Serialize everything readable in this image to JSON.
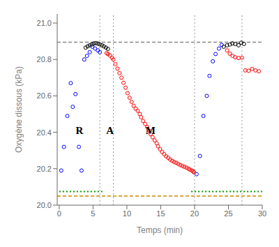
{
  "chart_data": {
    "type": "scatter",
    "xlabel": "Temps (min)",
    "ylabel": "Oxygène dissous (kPa)",
    "xlim": [
      -0.3,
      30
    ],
    "ylim": [
      20.0,
      21.05
    ],
    "xticks": [
      0,
      5,
      10,
      15,
      20,
      25,
      30
    ],
    "yticks": [
      {
        "value": 20.0,
        "label": "20.0"
      },
      20.2,
      20.4,
      20.6,
      20.8,
      {
        "value": 21.0,
        "label": "21.0"
      }
    ],
    "grid": false,
    "series": [
      {
        "color": "blue",
        "marker": "open_circle",
        "x": [
          0.3,
          0.7,
          1.2,
          1.7,
          2.0,
          2.4,
          2.9,
          3.3,
          3.7,
          4.1,
          4.5,
          4.9,
          5.3,
          5.7,
          6.0,
          20.3,
          20.8,
          21.3,
          21.8,
          22.2,
          22.7,
          23.1,
          23.6,
          24.0
        ],
        "values": [
          20.19,
          20.32,
          20.49,
          20.67,
          20.54,
          20.61,
          20.32,
          20.19,
          20.8,
          20.82,
          20.84,
          20.87,
          20.86,
          20.85,
          20.84,
          20.17,
          20.27,
          20.49,
          20.6,
          20.71,
          20.79,
          20.83,
          20.86,
          20.88
        ]
      },
      {
        "color": "black",
        "marker": "open_circle",
        "x": [
          3.9,
          4.2,
          4.5,
          4.8,
          5.1,
          5.4,
          5.7,
          6.0,
          6.3,
          6.6,
          6.9,
          7.2,
          24.3,
          24.8,
          25.2,
          25.6,
          26.0,
          26.5,
          26.9,
          27.3
        ],
        "values": [
          20.865,
          20.872,
          20.878,
          20.882,
          20.888,
          20.89,
          20.887,
          20.883,
          20.878,
          20.872,
          20.865,
          20.858,
          20.87,
          20.878,
          20.882,
          20.888,
          20.885,
          20.878,
          20.892,
          20.885
        ]
      },
      {
        "color": "red",
        "marker": "open_circle",
        "x": [
          7.0,
          7.2,
          7.5,
          7.8,
          8.0,
          8.3,
          8.6,
          8.9,
          9.2,
          9.5,
          9.8,
          10.1,
          10.4,
          10.7,
          11.0,
          11.3,
          11.6,
          11.9,
          12.1,
          12.4,
          12.7,
          13.0,
          13.3,
          13.5,
          13.8,
          14.1,
          14.4,
          14.6,
          14.9,
          15.2,
          15.5,
          15.8,
          16.1,
          16.4,
          16.7,
          17.0,
          17.3,
          17.6,
          17.9,
          18.2,
          18.5,
          18.8,
          19.1,
          19.3,
          19.6,
          19.8,
          19.9,
          24.8,
          25.2,
          25.6,
          26.0,
          26.5,
          27.0,
          27.5,
          28.0,
          28.5,
          29.0,
          29.5
        ],
        "values": [
          20.835,
          20.83,
          20.822,
          20.81,
          20.8,
          20.775,
          20.75,
          20.725,
          20.7,
          20.672,
          20.645,
          20.615,
          20.59,
          20.567,
          20.545,
          20.53,
          20.518,
          20.5,
          20.483,
          20.462,
          20.446,
          20.429,
          20.408,
          20.39,
          20.373,
          20.356,
          20.34,
          20.323,
          20.307,
          20.292,
          20.28,
          20.268,
          20.26,
          20.25,
          20.243,
          20.237,
          20.232,
          20.226,
          20.22,
          20.215,
          20.21,
          20.206,
          20.2,
          20.195,
          20.19,
          20.185,
          20.18,
          20.85,
          20.832,
          20.82,
          20.812,
          20.808,
          20.81,
          20.74,
          20.738,
          20.748,
          20.74,
          20.735
        ]
      }
    ],
    "hlines": [
      {
        "y": 20.895,
        "color": "#888888",
        "line_style": "dashed"
      },
      {
        "y": 20.075,
        "color": "#009900",
        "line_style": "dotted",
        "segments": [
          [
            0,
            6.5
          ],
          [
            19.5,
            30
          ]
        ]
      },
      {
        "y": 20.05,
        "color": "#CC8800",
        "line_style": "dashed"
      }
    ],
    "vlines": [
      {
        "x": 6.0,
        "color": "#999999",
        "line_style": "dotted"
      },
      {
        "x": 8.0,
        "color": "#999999",
        "line_style": "dotted"
      },
      {
        "x": 20.0,
        "color": "#999999",
        "line_style": "dotted"
      },
      {
        "x": 27.0,
        "color": "#999999",
        "line_style": "dotted"
      }
    ],
    "annotations": [
      {
        "text": "R",
        "x": 3.0,
        "y": 20.41
      },
      {
        "text": "A",
        "x": 7.5,
        "y": 20.41
      },
      {
        "text": "M",
        "x": 13.5,
        "y": 20.41
      }
    ]
  }
}
